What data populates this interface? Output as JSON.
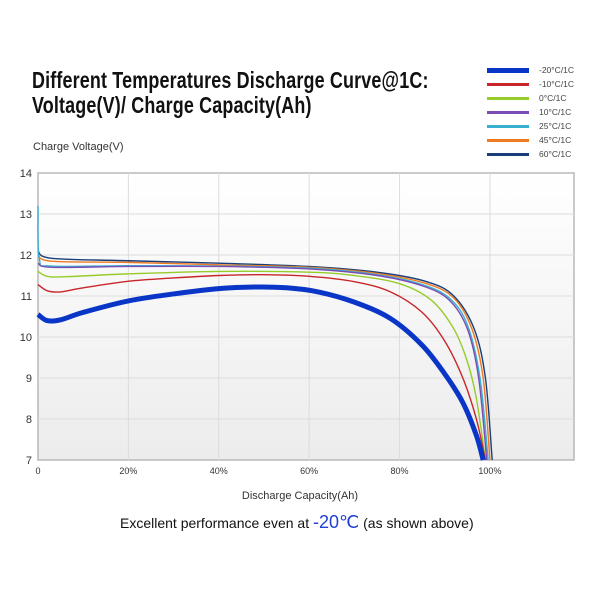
{
  "chart_data": {
    "type": "line",
    "title_line1": "Different Temperatures Discharge Curve@1C:",
    "title_line2": "Voltage(V)/ Charge Capacity(Ah)",
    "ylabel": "Charge Voltage(V)",
    "xlabel": "Discharge Capacity(Ah)",
    "ylim": [
      7,
      14
    ],
    "xlim": [
      0,
      118.6
    ],
    "yticks": [
      "7",
      "8",
      "9",
      "10",
      "11",
      "12",
      "13",
      "14"
    ],
    "xticks": [
      {
        "v": 0,
        "label": "0"
      },
      {
        "v": 20,
        "label": "20%"
      },
      {
        "v": 40,
        "label": "40%"
      },
      {
        "v": 60,
        "label": "60%"
      },
      {
        "v": 80,
        "label": "80%"
      },
      {
        "v": 100,
        "label": "100%"
      }
    ],
    "grid": true,
    "legend_position": "top-right",
    "series": [
      {
        "name": "-20°C/1C",
        "color": "#0a36c8",
        "width": 5,
        "points": [
          [
            0,
            10.55
          ],
          [
            2,
            10.4
          ],
          [
            5,
            10.42
          ],
          [
            10,
            10.6
          ],
          [
            20,
            10.88
          ],
          [
            30,
            11.05
          ],
          [
            40,
            11.18
          ],
          [
            48,
            11.22
          ],
          [
            55,
            11.2
          ],
          [
            62,
            11.1
          ],
          [
            70,
            10.85
          ],
          [
            78,
            10.45
          ],
          [
            85,
            9.8
          ],
          [
            90,
            9.1
          ],
          [
            94,
            8.4
          ],
          [
            97,
            7.6
          ],
          [
            98.5,
            7.0
          ]
        ]
      },
      {
        "name": "-10°C/1C",
        "color": "#c8262a",
        "width": 1.4,
        "points": [
          [
            0,
            11.28
          ],
          [
            2,
            11.13
          ],
          [
            5,
            11.1
          ],
          [
            10,
            11.2
          ],
          [
            20,
            11.36
          ],
          [
            30,
            11.44
          ],
          [
            40,
            11.5
          ],
          [
            50,
            11.52
          ],
          [
            60,
            11.48
          ],
          [
            70,
            11.35
          ],
          [
            78,
            11.1
          ],
          [
            85,
            10.6
          ],
          [
            90,
            9.9
          ],
          [
            94,
            9.0
          ],
          [
            97,
            8.0
          ],
          [
            99,
            7.0
          ]
        ]
      },
      {
        "name": "0°C/1C",
        "color": "#96cc2a",
        "width": 1.4,
        "points": [
          [
            0,
            11.6
          ],
          [
            2,
            11.48
          ],
          [
            6,
            11.47
          ],
          [
            20,
            11.54
          ],
          [
            40,
            11.6
          ],
          [
            60,
            11.58
          ],
          [
            70,
            11.5
          ],
          [
            80,
            11.3
          ],
          [
            87,
            10.9
          ],
          [
            92,
            10.2
          ],
          [
            95,
            9.4
          ],
          [
            97,
            8.5
          ],
          [
            99,
            7.0
          ]
        ]
      },
      {
        "name": "10°C/1C",
        "color": "#7a4cb4",
        "width": 1.4,
        "points": [
          [
            0,
            11.8
          ],
          [
            3,
            11.7
          ],
          [
            20,
            11.72
          ],
          [
            40,
            11.72
          ],
          [
            60,
            11.66
          ],
          [
            75,
            11.5
          ],
          [
            85,
            11.25
          ],
          [
            91,
            10.9
          ],
          [
            95,
            10.2
          ],
          [
            97.5,
            9.0
          ],
          [
            99.3,
            7.0
          ]
        ]
      },
      {
        "name": "25°C/1C",
        "color": "#3ab0d0",
        "width": 1.4,
        "points": [
          [
            0,
            13.2
          ],
          [
            0.3,
            11.9
          ],
          [
            3,
            11.73
          ],
          [
            20,
            11.74
          ],
          [
            40,
            11.73
          ],
          [
            60,
            11.68
          ],
          [
            75,
            11.52
          ],
          [
            85,
            11.28
          ],
          [
            91,
            10.95
          ],
          [
            95,
            10.3
          ],
          [
            97.8,
            9.0
          ],
          [
            99.6,
            7.0
          ]
        ]
      },
      {
        "name": "45°C/1C",
        "color": "#ee7a22",
        "width": 1.4,
        "points": [
          [
            0,
            12.0
          ],
          [
            3,
            11.85
          ],
          [
            20,
            11.82
          ],
          [
            40,
            11.76
          ],
          [
            60,
            11.7
          ],
          [
            75,
            11.55
          ],
          [
            86,
            11.3
          ],
          [
            92,
            10.95
          ],
          [
            96,
            10.2
          ],
          [
            98.5,
            9.0
          ],
          [
            100,
            7.0
          ]
        ]
      },
      {
        "name": "60°C/1C",
        "color": "#1a3f78",
        "width": 1.4,
        "points": [
          [
            0,
            12.1
          ],
          [
            3,
            11.92
          ],
          [
            20,
            11.86
          ],
          [
            40,
            11.8
          ],
          [
            60,
            11.72
          ],
          [
            75,
            11.58
          ],
          [
            86,
            11.35
          ],
          [
            92,
            11.0
          ],
          [
            96.5,
            10.2
          ],
          [
            99,
            9.0
          ],
          [
            100.5,
            7.0
          ]
        ]
      }
    ]
  },
  "note": {
    "prefix": "Excellent performance even at ",
    "highlight": "-20℃",
    "suffix": " (as shown above)"
  }
}
